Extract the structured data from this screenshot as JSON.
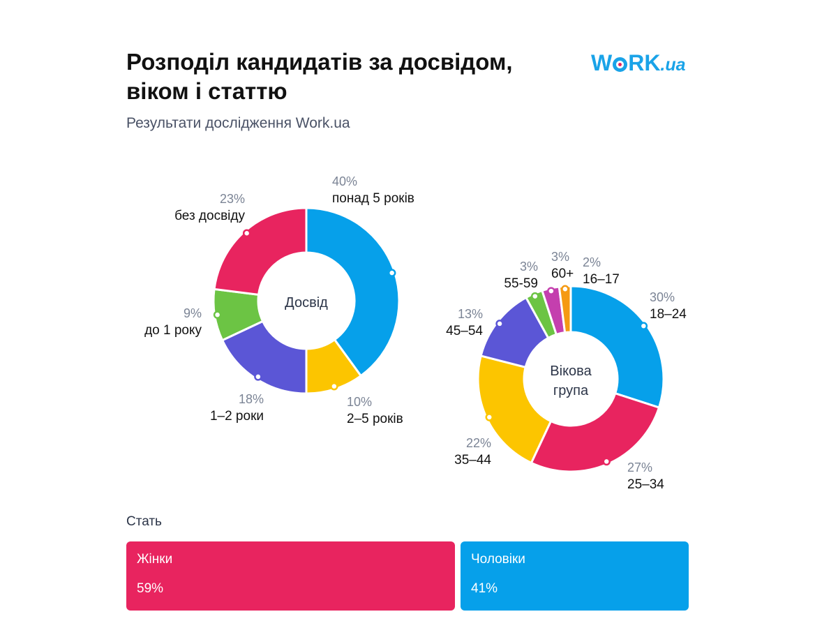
{
  "header": {
    "title_line1": "Розподіл кандидатів за досвідом,",
    "title_line2": "віком і статтю",
    "subtitle": "Результати дослідження Work.ua",
    "logo_main": "WORK",
    "logo_suffix": ".ua"
  },
  "colors": {
    "blue": "#06a0ea",
    "pink": "#e8245f",
    "green": "#6cc444",
    "purple": "#5b56d6",
    "yellow": "#fcc500",
    "magenta": "#c43fae",
    "orange": "#f59a12"
  },
  "chart_data": [
    {
      "type": "pie",
      "center_label": "Досвід",
      "slices": [
        {
          "label": "понад 5 років",
          "pct_label": "40%",
          "value": 40,
          "color": "#06a0ea"
        },
        {
          "label": "2–5 років",
          "pct_label": "10%",
          "value": 10,
          "color": "#fcc500"
        },
        {
          "label": "1–2 роки",
          "pct_label": "18%",
          "value": 18,
          "color": "#5b56d6"
        },
        {
          "label": "до 1 року",
          "pct_label": "9%",
          "value": 9,
          "color": "#6cc444"
        },
        {
          "label": "без досвіду",
          "pct_label": "23%",
          "value": 23,
          "color": "#e8245f"
        }
      ]
    },
    {
      "type": "pie",
      "center_label_line1": "Вікова",
      "center_label_line2": "група",
      "slices": [
        {
          "label": "18–24",
          "pct_label": "30%",
          "value": 30,
          "color": "#06a0ea"
        },
        {
          "label": "25–34",
          "pct_label": "27%",
          "value": 27,
          "color": "#e8245f"
        },
        {
          "label": "35–44",
          "pct_label": "22%",
          "value": 22,
          "color": "#fcc500"
        },
        {
          "label": "45–54",
          "pct_label": "13%",
          "value": 13,
          "color": "#5b56d6"
        },
        {
          "label": "55-59",
          "pct_label": "3%",
          "value": 3,
          "color": "#6cc444"
        },
        {
          "label": "60+",
          "pct_label": "3%",
          "value": 3,
          "color": "#c43fae"
        },
        {
          "label": "16–17",
          "pct_label": "2%",
          "value": 2,
          "color": "#f59a12"
        }
      ]
    },
    {
      "type": "bar",
      "title": "Стать",
      "categories": [
        "Жінки",
        "Чоловіки"
      ],
      "values": [
        59,
        41
      ],
      "value_labels": [
        "59%",
        "41%"
      ],
      "colors": [
        "#e8245f",
        "#06a0ea"
      ]
    }
  ]
}
